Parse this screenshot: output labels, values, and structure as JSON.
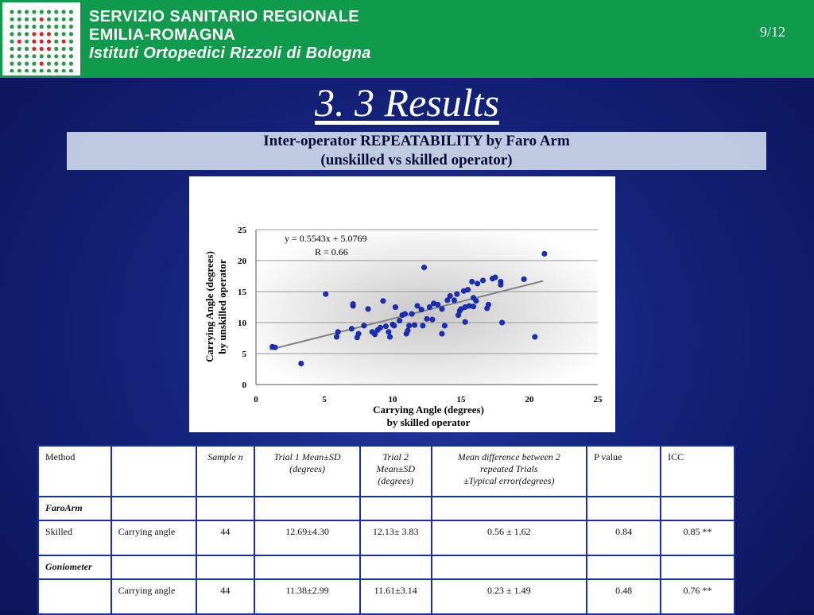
{
  "header": {
    "line1": "SERVIZIO SANITARIO REGIONALE",
    "line2": "EMILIA-ROMAGNA",
    "line3": "Istituti Ortopedici Rizzoli di Bologna",
    "page": "9/12",
    "brand_color": "#0f9a4c"
  },
  "slide": {
    "title": "3. 3 Results",
    "subtitle_line1": "Inter-operator REPEATABILITY by Faro Arm",
    "subtitle_line2": "(unskilled vs skilled operator)"
  },
  "chart_data": {
    "type": "scatter",
    "xlabel_line1": "Carrying Angle (degrees)",
    "xlabel_line2": "by skilled operator",
    "ylabel_line1": "Carrying Angle (degrees)",
    "ylabel_line2": "by unskilled operator",
    "xlim": [
      0,
      25
    ],
    "ylim": [
      0,
      25
    ],
    "xticks": [
      0,
      5,
      10,
      15,
      20,
      25
    ],
    "yticks": [
      0,
      5,
      10,
      15,
      20,
      25
    ],
    "grid": "horizontal",
    "equation": "y = 0.5543x + 5.0769",
    "r_label": "R = 0.66",
    "trendline": {
      "slope": 0.5543,
      "intercept": 5.0769,
      "x_range": [
        1.0,
        21.0
      ]
    },
    "point_color": "#1a2fc0",
    "points": [
      [
        1.2,
        6.1
      ],
      [
        1.4,
        6.0
      ],
      [
        3.3,
        3.4
      ],
      [
        5.1,
        14.6
      ],
      [
        5.9,
        7.7
      ],
      [
        6.0,
        8.5
      ],
      [
        7.0,
        9.0
      ],
      [
        7.1,
        12.7
      ],
      [
        7.1,
        13.0
      ],
      [
        7.4,
        7.6
      ],
      [
        7.5,
        8.2
      ],
      [
        7.9,
        9.5
      ],
      [
        8.2,
        12.2
      ],
      [
        8.5,
        8.5
      ],
      [
        8.7,
        8.1
      ],
      [
        8.9,
        8.8
      ],
      [
        9.1,
        9.2
      ],
      [
        9.3,
        13.5
      ],
      [
        9.5,
        9.4
      ],
      [
        9.7,
        8.5
      ],
      [
        9.8,
        7.7
      ],
      [
        10.0,
        9.7
      ],
      [
        10.1,
        9.5
      ],
      [
        10.2,
        12.5
      ],
      [
        10.5,
        10.3
      ],
      [
        10.7,
        11.2
      ],
      [
        10.9,
        11.4
      ],
      [
        11.0,
        8.2
      ],
      [
        11.1,
        8.7
      ],
      [
        11.2,
        9.5
      ],
      [
        11.4,
        11.4
      ],
      [
        11.6,
        9.6
      ],
      [
        11.8,
        12.7
      ],
      [
        12.1,
        12.1
      ],
      [
        12.2,
        9.5
      ],
      [
        12.3,
        18.9
      ],
      [
        12.5,
        10.6
      ],
      [
        12.7,
        12.5
      ],
      [
        12.9,
        10.5
      ],
      [
        13.0,
        13.1
      ],
      [
        13.3,
        12.9
      ],
      [
        13.6,
        8.2
      ],
      [
        13.6,
        12.2
      ],
      [
        13.8,
        9.5
      ],
      [
        14.0,
        13.6
      ],
      [
        14.2,
        14.3
      ],
      [
        14.5,
        13.6
      ],
      [
        14.7,
        14.6
      ],
      [
        14.8,
        11.2
      ],
      [
        14.9,
        11.9
      ],
      [
        15.0,
        12.2
      ],
      [
        15.2,
        15.1
      ],
      [
        15.3,
        10.1
      ],
      [
        15.3,
        12.5
      ],
      [
        15.5,
        15.3
      ],
      [
        15.6,
        12.7
      ],
      [
        15.8,
        16.6
      ],
      [
        15.9,
        12.6
      ],
      [
        15.9,
        14.0
      ],
      [
        16.1,
        13.5
      ],
      [
        16.2,
        16.3
      ],
      [
        16.6,
        16.8
      ],
      [
        16.9,
        12.3
      ],
      [
        17.0,
        12.9
      ],
      [
        17.3,
        17.1
      ],
      [
        17.5,
        17.3
      ],
      [
        17.9,
        16.6
      ],
      [
        17.9,
        16.1
      ],
      [
        18.0,
        10.0
      ],
      [
        19.6,
        17.0
      ],
      [
        20.4,
        7.7
      ],
      [
        21.1,
        21.1
      ]
    ]
  },
  "table": {
    "header": {
      "method": "Method",
      "empty": "",
      "sample": "Sample n",
      "trial1": "Trial 1 Mean±SD (degrees)",
      "trial2": "Trial 2 Mean±SD (degrees)",
      "meandiff_line1": "Mean difference between  2",
      "meandiff_line2": "repeated Trials",
      "meandiff_line3": "±Typical error(degrees)",
      "pvalue": "P value",
      "icc": "ICC"
    },
    "section1": "FaroArm",
    "row1": {
      "method": "Skilled",
      "measure": "Carrying angle",
      "sample": "44",
      "trial1": "12.69±4.30",
      "trial2": "12.13± 3.83",
      "meandiff": "0.56 ± 1.62",
      "pvalue": "0.84",
      "icc": "0.85 **"
    },
    "section2": "Goniometer",
    "row2": {
      "method": "",
      "measure": "Carrying angle",
      "sample": "44",
      "trial1": "11.38±2.99",
      "trial2": "11.61±3.14",
      "meandiff": "0.23 ± 1.49",
      "pvalue": "0.48",
      "icc": "0.76 **"
    }
  }
}
